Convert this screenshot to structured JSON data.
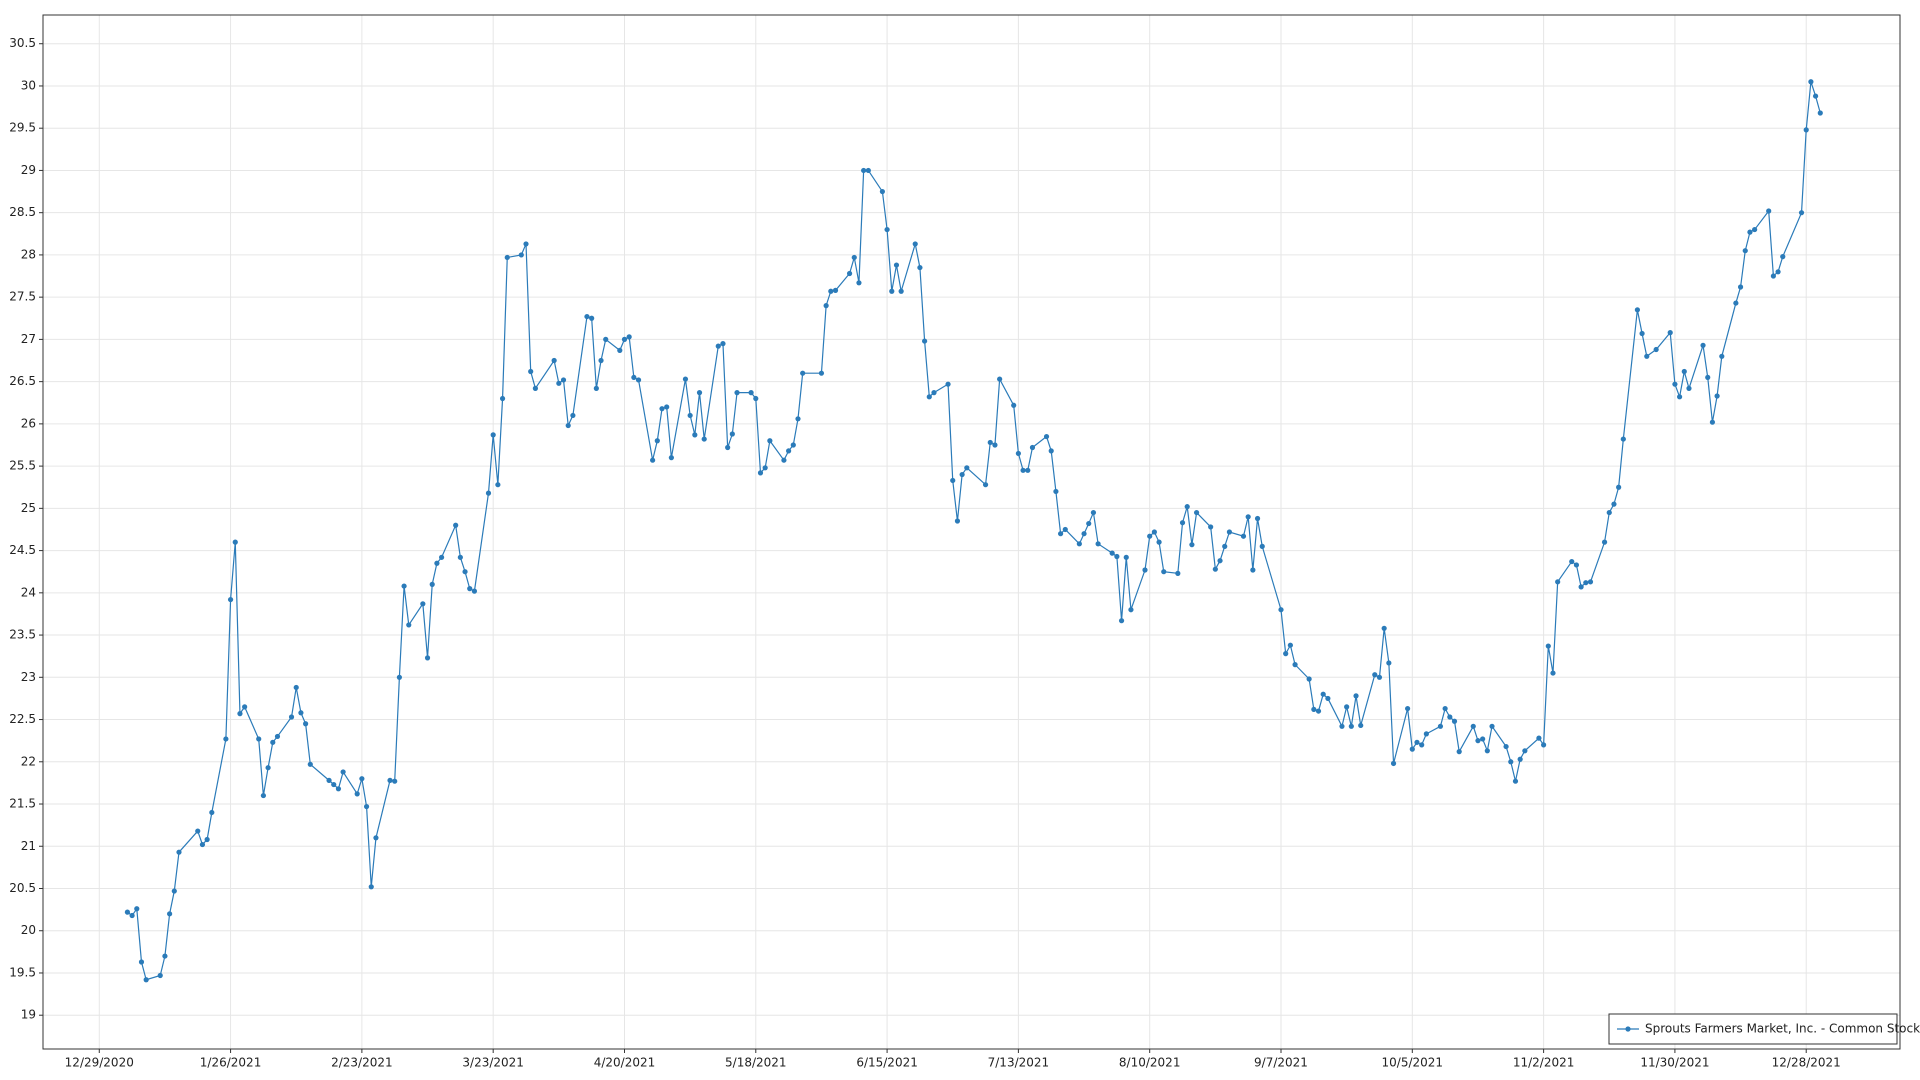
{
  "chart_data": {
    "type": "line",
    "x": [
      "1/4/2021",
      "1/5/2021",
      "1/6/2021",
      "1/7/2021",
      "1/8/2021",
      "1/11/2021",
      "1/12/2021",
      "1/13/2021",
      "1/14/2021",
      "1/15/2021",
      "1/19/2021",
      "1/20/2021",
      "1/21/2021",
      "1/22/2021",
      "1/25/2021",
      "1/26/2021",
      "1/27/2021",
      "1/28/2021",
      "1/29/2021",
      "2/1/2021",
      "2/2/2021",
      "2/3/2021",
      "2/4/2021",
      "2/5/2021",
      "2/8/2021",
      "2/9/2021",
      "2/10/2021",
      "2/11/2021",
      "2/12/2021",
      "2/16/2021",
      "2/17/2021",
      "2/18/2021",
      "2/19/2021",
      "2/22/2021",
      "2/23/2021",
      "2/24/2021",
      "2/25/2021",
      "2/26/2021",
      "3/1/2021",
      "3/2/2021",
      "3/3/2021",
      "3/4/2021",
      "3/5/2021",
      "3/8/2021",
      "3/9/2021",
      "3/10/2021",
      "3/11/2021",
      "3/12/2021",
      "3/15/2021",
      "3/16/2021",
      "3/17/2021",
      "3/18/2021",
      "3/19/2021",
      "3/22/2021",
      "3/23/2021",
      "3/24/2021",
      "3/25/2021",
      "3/26/2021",
      "3/29/2021",
      "3/30/2021",
      "3/31/2021",
      "4/1/2021",
      "4/5/2021",
      "4/6/2021",
      "4/7/2021",
      "4/8/2021",
      "4/9/2021",
      "4/12/2021",
      "4/13/2021",
      "4/14/2021",
      "4/15/2021",
      "4/16/2021",
      "4/19/2021",
      "4/20/2021",
      "4/21/2021",
      "4/22/2021",
      "4/23/2021",
      "4/26/2021",
      "4/27/2021",
      "4/28/2021",
      "4/29/2021",
      "4/30/2021",
      "5/3/2021",
      "5/4/2021",
      "5/5/2021",
      "5/6/2021",
      "5/7/2021",
      "5/10/2021",
      "5/11/2021",
      "5/12/2021",
      "5/13/2021",
      "5/14/2021",
      "5/17/2021",
      "5/18/2021",
      "5/19/2021",
      "5/20/2021",
      "5/21/2021",
      "5/24/2021",
      "5/25/2021",
      "5/26/2021",
      "5/27/2021",
      "5/28/2021",
      "6/1/2021",
      "6/2/2021",
      "6/3/2021",
      "6/4/2021",
      "6/7/2021",
      "6/8/2021",
      "6/9/2021",
      "6/10/2021",
      "6/11/2021",
      "6/14/2021",
      "6/15/2021",
      "6/16/2021",
      "6/17/2021",
      "6/18/2021",
      "6/21/2021",
      "6/22/2021",
      "6/23/2021",
      "6/24/2021",
      "6/25/2021",
      "6/28/2021",
      "6/29/2021",
      "6/30/2021",
      "7/1/2021",
      "7/2/2021",
      "7/6/2021",
      "7/7/2021",
      "7/8/2021",
      "7/9/2021",
      "7/12/2021",
      "7/13/2021",
      "7/14/2021",
      "7/15/2021",
      "7/16/2021",
      "7/19/2021",
      "7/20/2021",
      "7/21/2021",
      "7/22/2021",
      "7/23/2021",
      "7/26/2021",
      "7/27/2021",
      "7/28/2021",
      "7/29/2021",
      "7/30/2021",
      "8/2/2021",
      "8/3/2021",
      "8/4/2021",
      "8/5/2021",
      "8/6/2021",
      "8/9/2021",
      "8/10/2021",
      "8/11/2021",
      "8/12/2021",
      "8/13/2021",
      "8/16/2021",
      "8/17/2021",
      "8/18/2021",
      "8/19/2021",
      "8/20/2021",
      "8/23/2021",
      "8/24/2021",
      "8/25/2021",
      "8/26/2021",
      "8/27/2021",
      "8/30/2021",
      "8/31/2021",
      "9/1/2021",
      "9/2/2021",
      "9/3/2021",
      "9/7/2021",
      "9/8/2021",
      "9/9/2021",
      "9/10/2021",
      "9/13/2021",
      "9/14/2021",
      "9/15/2021",
      "9/16/2021",
      "9/17/2021",
      "9/20/2021",
      "9/21/2021",
      "9/22/2021",
      "9/23/2021",
      "9/24/2021",
      "9/27/2021",
      "9/28/2021",
      "9/29/2021",
      "9/30/2021",
      "10/1/2021",
      "10/4/2021",
      "10/5/2021",
      "10/6/2021",
      "10/7/2021",
      "10/8/2021",
      "10/11/2021",
      "10/12/2021",
      "10/13/2021",
      "10/14/2021",
      "10/15/2021",
      "10/18/2021",
      "10/19/2021",
      "10/20/2021",
      "10/21/2021",
      "10/22/2021",
      "10/25/2021",
      "10/26/2021",
      "10/27/2021",
      "10/28/2021",
      "10/29/2021",
      "11/1/2021",
      "11/2/2021",
      "11/3/2021",
      "11/4/2021",
      "11/5/2021",
      "11/8/2021",
      "11/9/2021",
      "11/10/2021",
      "11/11/2021",
      "11/12/2021",
      "11/15/2021",
      "11/16/2021",
      "11/17/2021",
      "11/18/2021",
      "11/19/2021",
      "11/22/2021",
      "11/23/2021",
      "11/24/2021",
      "11/26/2021",
      "11/29/2021",
      "11/30/2021",
      "12/1/2021",
      "12/2/2021",
      "12/3/2021",
      "12/6/2021",
      "12/7/2021",
      "12/8/2021",
      "12/9/2021",
      "12/10/2021",
      "12/13/2021",
      "12/14/2021",
      "12/15/2021",
      "12/16/2021",
      "12/17/2021",
      "12/20/2021",
      "12/21/2021",
      "12/22/2021",
      "12/23/2021",
      "12/27/2021",
      "12/28/2021",
      "12/29/2021",
      "12/30/2021",
      "12/31/2021"
    ],
    "series": [
      {
        "name": "Sprouts Farmers Market, Inc. - Common Stock",
        "color": "#2b7bb9",
        "values": [
          20.22,
          20.18,
          20.26,
          19.63,
          19.42,
          19.47,
          19.7,
          20.2,
          20.47,
          20.93,
          21.18,
          21.02,
          21.08,
          21.4,
          22.27,
          23.92,
          24.6,
          22.57,
          22.65,
          22.27,
          21.6,
          21.93,
          22.23,
          22.3,
          22.53,
          22.88,
          22.58,
          22.45,
          21.97,
          21.78,
          21.73,
          21.68,
          21.88,
          21.62,
          21.8,
          21.47,
          20.52,
          21.1,
          21.78,
          21.77,
          23.0,
          24.08,
          23.62,
          23.87,
          23.23,
          24.1,
          24.35,
          24.42,
          24.8,
          24.42,
          24.25,
          24.05,
          24.02,
          25.18,
          25.87,
          25.28,
          26.3,
          27.97,
          28.0,
          28.13,
          26.62,
          26.42,
          26.75,
          26.48,
          26.52,
          25.98,
          26.1,
          27.27,
          27.25,
          26.42,
          26.75,
          27.0,
          26.87,
          27.0,
          27.03,
          26.55,
          26.52,
          25.57,
          25.8,
          26.18,
          26.2,
          25.6,
          26.53,
          26.1,
          25.87,
          26.37,
          25.82,
          26.92,
          26.95,
          25.72,
          25.88,
          26.37,
          26.37,
          26.3,
          25.42,
          25.48,
          25.8,
          25.57,
          25.68,
          25.75,
          26.06,
          26.6,
          26.6,
          27.4,
          27.57,
          27.58,
          27.78,
          27.97,
          27.67,
          29.0,
          29.0,
          28.75,
          28.3,
          27.57,
          27.88,
          27.57,
          28.13,
          27.85,
          26.98,
          26.32,
          26.37,
          26.47,
          25.33,
          24.85,
          25.4,
          25.48,
          25.28,
          25.78,
          25.75,
          26.53,
          26.22,
          25.65,
          25.45,
          25.45,
          25.72,
          25.85,
          25.68,
          25.2,
          24.7,
          24.75,
          24.58,
          24.7,
          24.82,
          24.95,
          24.58,
          24.47,
          24.43,
          23.67,
          24.42,
          23.8,
          24.27,
          24.67,
          24.72,
          24.6,
          24.25,
          24.23,
          24.83,
          25.02,
          24.57,
          24.95,
          24.78,
          24.28,
          24.38,
          24.55,
          24.72,
          24.67,
          24.9,
          24.27,
          24.88,
          24.55,
          23.8,
          23.28,
          23.38,
          23.15,
          22.98,
          22.62,
          22.6,
          22.8,
          22.75,
          22.42,
          22.65,
          22.42,
          22.78,
          22.43,
          23.03,
          23.0,
          23.58,
          23.17,
          21.98,
          22.63,
          22.15,
          22.23,
          22.2,
          22.33,
          22.42,
          22.63,
          22.53,
          22.48,
          22.12,
          22.42,
          22.25,
          22.27,
          22.13,
          22.42,
          22.18,
          22.0,
          21.77,
          22.03,
          22.13,
          22.28,
          22.2,
          23.37,
          23.05,
          24.13,
          24.37,
          24.33,
          24.07,
          24.12,
          24.13,
          24.6,
          24.95,
          25.05,
          25.25,
          25.82,
          27.35,
          27.07,
          26.8,
          26.88,
          27.08,
          26.47,
          26.32,
          26.62,
          26.42,
          26.93,
          26.55,
          26.02,
          26.33,
          26.8,
          27.43,
          27.62,
          28.05,
          28.27,
          28.3,
          28.52,
          27.75,
          27.8,
          27.98,
          28.5,
          29.48,
          30.05,
          29.88,
          29.68
        ]
      }
    ],
    "xlim": [
      "12/17/2020",
      "1/17/2022"
    ],
    "xticks": [
      "12/29/2020",
      "1/26/2021",
      "2/23/2021",
      "3/23/2021",
      "4/20/2021",
      "5/18/2021",
      "6/15/2021",
      "7/13/2021",
      "8/10/2021",
      "9/7/2021",
      "10/5/2021",
      "11/2/2021",
      "11/30/2021",
      "12/28/2021"
    ],
    "ylim": [
      18.6,
      30.84
    ],
    "yticks": [
      19,
      19.5,
      20,
      20.5,
      21,
      21.5,
      22,
      22.5,
      23,
      23.5,
      24,
      24.5,
      25,
      25.5,
      26,
      26.5,
      27,
      27.5,
      28,
      28.5,
      29,
      29.5,
      30,
      30.5
    ],
    "grid": true,
    "legend": "lower right",
    "markers": true
  }
}
